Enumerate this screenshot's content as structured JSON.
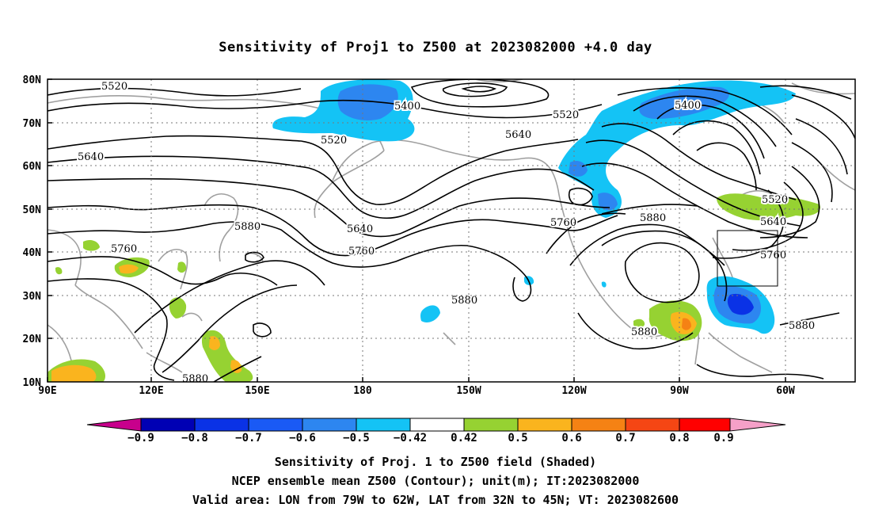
{
  "title": "Sensitivity of Proj1 to Z500 at 2023082000 +4.0 day",
  "map": {
    "lon_labels": [
      "90E",
      "120E",
      "150E",
      "180",
      "150W",
      "120W",
      "90W",
      "60W"
    ],
    "lat_labels": [
      "80N",
      "70N",
      "60N",
      "50N",
      "40N",
      "30N",
      "20N",
      "10N"
    ],
    "contour_labels": [
      "5520",
      "5400",
      "5520",
      "5640",
      "5520",
      "5400",
      "5640",
      "5760",
      "5880",
      "5640",
      "5760",
      "5880",
      "5760",
      "5880",
      "5520",
      "5640",
      "5760",
      "5880",
      "5880",
      "5880"
    ],
    "valid_area_box": {
      "lon_from": "79W",
      "lon_to": "62W",
      "lat_from": "32N",
      "lat_to": "45N"
    }
  },
  "colorbar": {
    "labels": [
      "−0.9",
      "−0.8",
      "−0.7",
      "−0.6",
      "−0.5",
      "−0.42",
      "0.42",
      "0.5",
      "0.6",
      "0.7",
      "0.8",
      "0.9"
    ],
    "colors": [
      "#c8008c",
      "#0000b4",
      "#0a32e6",
      "#1a5af5",
      "#2d86f0",
      "#14c3f5",
      "#ffffff",
      "#96d232",
      "#fab41e",
      "#f58214",
      "#f54614",
      "#ff0000",
      "#f5a0c8"
    ]
  },
  "captions": {
    "line1": "Sensitivity of Proj. 1 to Z500 field (Shaded)",
    "line2": "NCEP ensemble mean Z500 (Contour); unit(m); IT:2023082000",
    "line3": "Valid area: LON from 79W to 62W, LAT from 32N to 45N; VT: 2023082600"
  }
}
